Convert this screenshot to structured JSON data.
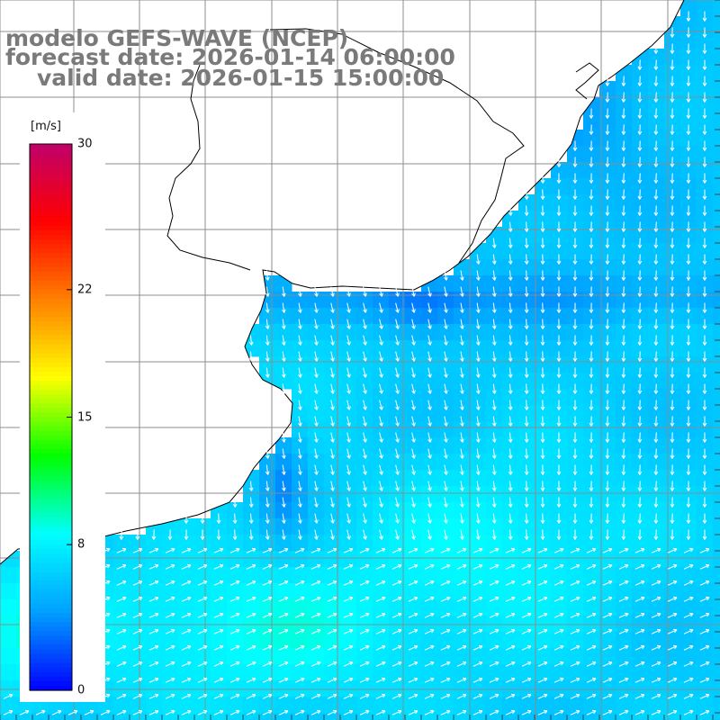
{
  "header": {
    "model_title": "modelo GEFS-WAVE (NCEP)",
    "forecast_date": "forecast date: 2026-01-14 06:00:00",
    "valid_date": "valid date: 2026-01-15 15:00:00"
  },
  "colorbar": {
    "units": "[m/s]",
    "ticks": [
      {
        "label": "30",
        "value": 30
      },
      {
        "label": "22",
        "value": 22
      },
      {
        "label": "15",
        "value": 15
      },
      {
        "label": "8",
        "value": 8
      },
      {
        "label": "0",
        "value": 0
      }
    ],
    "range": [
      0,
      30
    ],
    "colors": [
      "#0000ff",
      "#00a0ff",
      "#00ffff",
      "#00ff00",
      "#ffff00",
      "#ff8000",
      "#ff0000",
      "#c0006a"
    ]
  },
  "map": {
    "projection": "lat-lon grid",
    "grid_visible": true,
    "land_color": "#ffffff",
    "coastline_color": "#000000",
    "grid_color": "#8c8c8c",
    "arrow_color": "#ffffff"
  }
}
